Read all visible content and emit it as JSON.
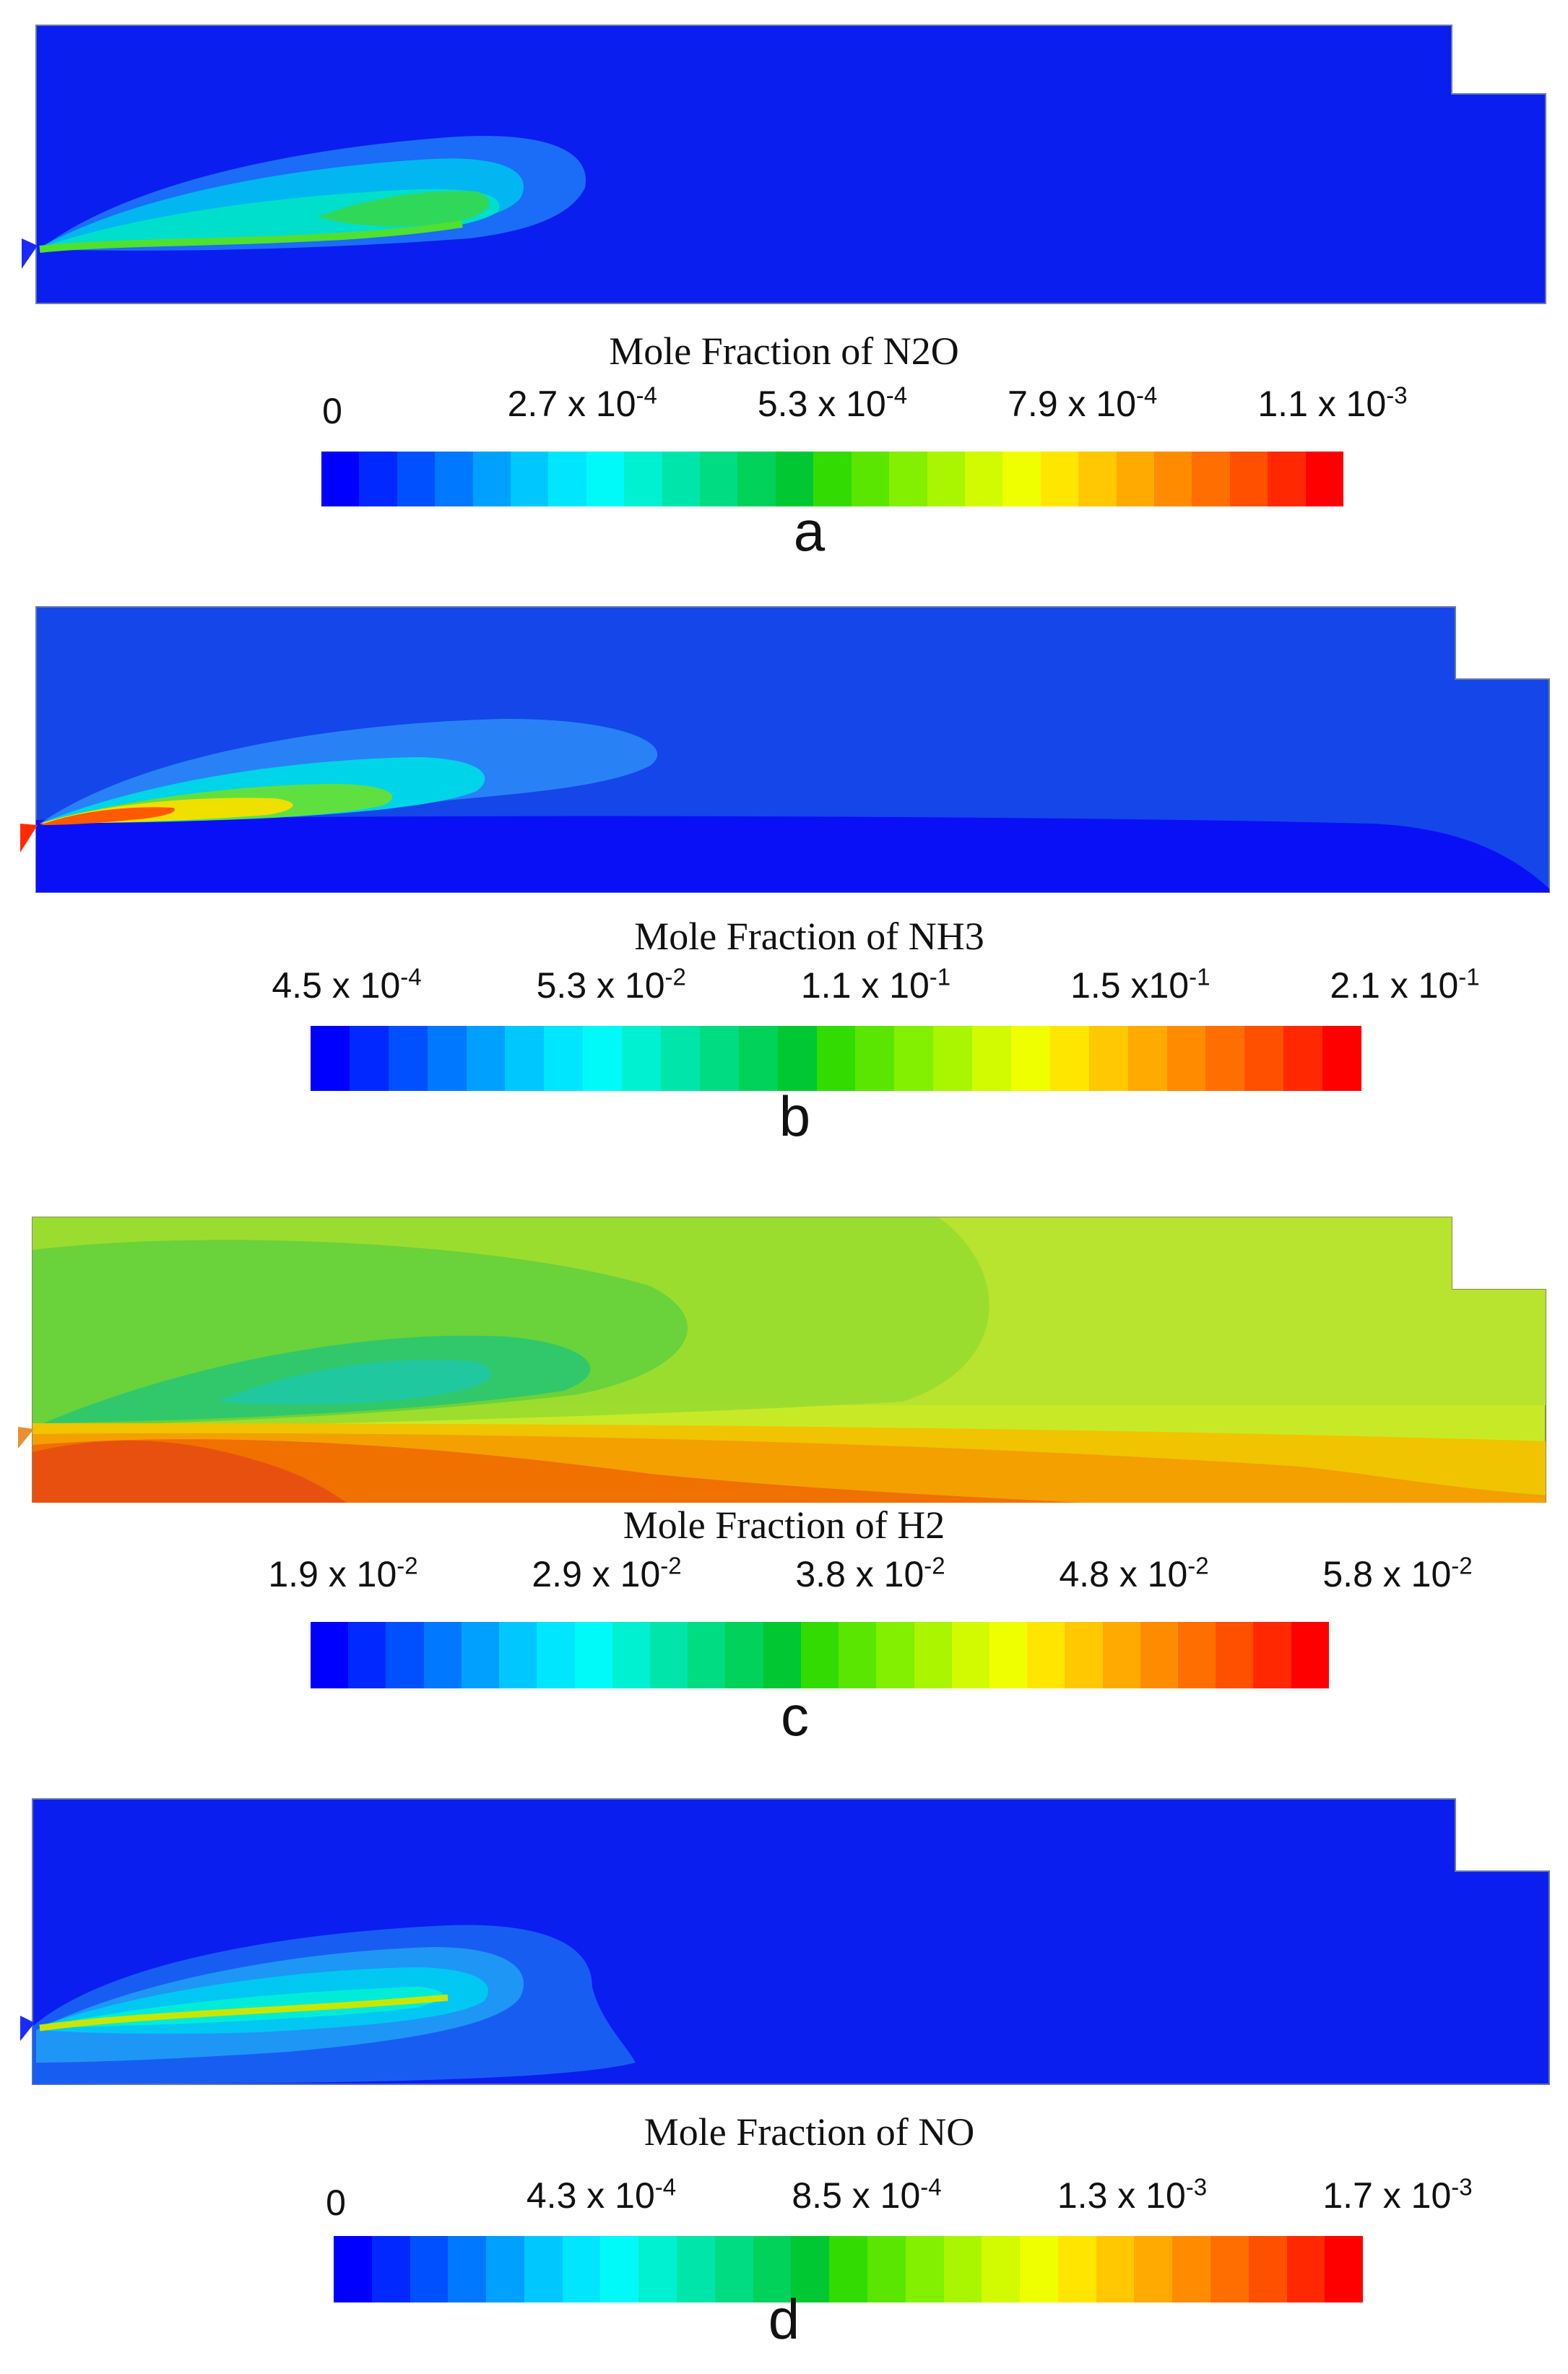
{
  "colormap": [
    "#0000ff",
    "#0028ff",
    "#0050ff",
    "#0078ff",
    "#00a0ff",
    "#00c8ff",
    "#00e6ff",
    "#00fafa",
    "#00f0d2",
    "#00e6aa",
    "#00dc82",
    "#00d25a",
    "#00c832",
    "#32dc00",
    "#5ae600",
    "#82f000",
    "#aaf500",
    "#d2fa00",
    "#f0ff00",
    "#ffe600",
    "#ffc800",
    "#ffaa00",
    "#ff8c00",
    "#ff6e00",
    "#ff5000",
    "#ff2800",
    "#ff0000"
  ],
  "panels": [
    {
      "id": "a",
      "field": "Mole Fraction of N2O",
      "label": "a",
      "ticks": [
        {
          "m": "0",
          "e": ""
        },
        {
          "m": "2.7 x 10",
          "e": "-4"
        },
        {
          "m": "5.3 x 10",
          "e": "-4"
        },
        {
          "m": "7.9 x 10",
          "e": "-4"
        },
        {
          "m": "1.1 x 10",
          "e": "-3"
        }
      ],
      "background_color": "#0a1ef0"
    },
    {
      "id": "b",
      "field": "Mole Fraction of NH3",
      "label": "b",
      "ticks": [
        {
          "m": "4.5 x 10",
          "e": "-4"
        },
        {
          "m": "5.3 x  10",
          "e": "-2"
        },
        {
          "m": "1.1 x  10",
          "e": "-1"
        },
        {
          "m": "1.5 x10",
          "e": "-1"
        },
        {
          "m": "2.1 x 10",
          "e": "-1"
        }
      ],
      "background_color": "#1446ea"
    },
    {
      "id": "c",
      "field": "Mole Fraction of H2",
      "label": "c",
      "ticks": [
        {
          "m": "1.9 x 10",
          "e": "-2"
        },
        {
          "m": "2.9 x 10",
          "e": "-2"
        },
        {
          "m": "3.8 x 10",
          "e": "-2"
        },
        {
          "m": "4.8 x 10",
          "e": "-2"
        },
        {
          "m": "5.8 x 10",
          "e": "-2"
        }
      ],
      "background_color": "#b4e62a"
    },
    {
      "id": "d",
      "field": "Mole Fraction of NO",
      "label": "d",
      "ticks": [
        {
          "m": "0",
          "e": ""
        },
        {
          "m": "4.3 x 10",
          "e": "-4"
        },
        {
          "m": "8.5 x 10",
          "e": "-4"
        },
        {
          "m": "1.3 x 10",
          "e": "-3"
        },
        {
          "m": "1.7 x 10",
          "e": "-3"
        }
      ],
      "background_color": "#0a1ef0"
    }
  ]
}
